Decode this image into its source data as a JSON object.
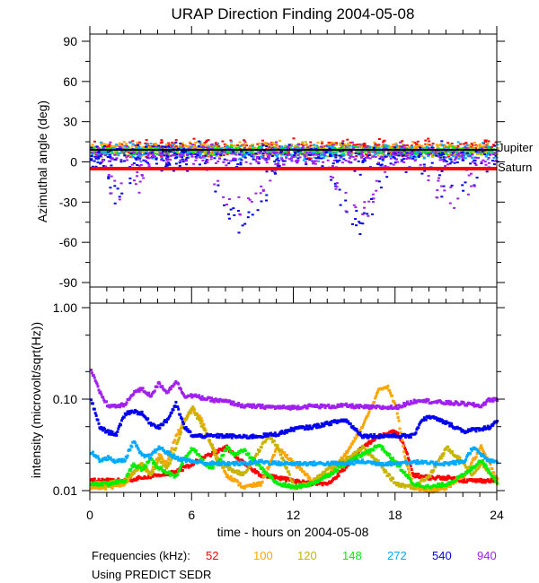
{
  "chart_data": [
    {
      "type": "scatter",
      "title": "URAP Direction Finding  2004-05-08",
      "xlabel": "time - hours on 2004-05-08",
      "ylabel": "Azimuthal angle (deg)",
      "xlim": [
        0,
        24
      ],
      "ylim": [
        -90,
        90
      ],
      "xticks": [
        "0",
        "6",
        "12",
        "18",
        "24"
      ],
      "yticks": [
        "90",
        "60",
        "30",
        "0",
        "-30",
        "-60",
        "-90"
      ],
      "reference_lines": [
        {
          "name": "Jupiter",
          "value": 9,
          "color": "#000000"
        },
        {
          "name": "Saturn",
          "value": -5,
          "color": "#ff0000"
        }
      ],
      "series": [
        {
          "name": "52",
          "color": "#ff0000",
          "center": 11,
          "spread": 6
        },
        {
          "name": "100",
          "color": "#ffa500",
          "center": 10,
          "spread": 5
        },
        {
          "name": "120",
          "color": "#c8b400",
          "center": 9,
          "spread": 5
        },
        {
          "name": "148",
          "color": "#00ee00",
          "center": 9,
          "spread": 3
        },
        {
          "name": "272",
          "color": "#00aaff",
          "center": 8,
          "spread": 6
        },
        {
          "name": "540",
          "color": "#0000ee",
          "center": 4,
          "spread": 10,
          "excursions": [
            [
              0.5,
              2.5,
              -25
            ],
            [
              7,
              11,
              -45
            ],
            [
              14,
              17.5,
              -45
            ],
            [
              19.5,
              23,
              -20
            ]
          ]
        },
        {
          "name": "940",
          "color": "#a020f0",
          "center": 6,
          "spread": 8,
          "excursions": [
            [
              0.5,
              3.5,
              -20
            ],
            [
              7,
              11,
              -35
            ],
            [
              14,
              17.5,
              -35
            ],
            [
              19.5,
              23,
              -25
            ]
          ]
        }
      ]
    },
    {
      "type": "scatter",
      "xlabel": "time - hours on 2004-05-08",
      "ylabel": "intensity (microvolt/sqrt(Hz))",
      "xlim": [
        0,
        24
      ],
      "ylim": [
        0.01,
        1.0
      ],
      "yscale": "log",
      "xticks": [
        "0",
        "6",
        "12",
        "18",
        "24"
      ],
      "yticks": [
        "1.00",
        "0.10",
        "0.01"
      ],
      "series": [
        {
          "name": "940",
          "color": "#a020f0",
          "x": [
            0,
            0.5,
            1,
            1.5,
            2,
            2.5,
            3,
            3.5,
            4,
            4.5,
            5,
            5.5,
            6,
            7,
            8,
            9,
            10,
            10.5,
            11,
            12,
            13,
            14,
            15,
            16,
            17,
            18,
            19,
            19.5,
            20,
            21,
            22,
            23,
            23.5,
            24
          ],
          "y": [
            0.21,
            0.12,
            0.085,
            0.085,
            0.087,
            0.12,
            0.13,
            0.11,
            0.15,
            0.12,
            0.16,
            0.11,
            0.11,
            0.1,
            0.095,
            0.085,
            0.084,
            0.083,
            0.082,
            0.082,
            0.085,
            0.084,
            0.086,
            0.083,
            0.082,
            0.082,
            0.095,
            0.1,
            0.095,
            0.092,
            0.09,
            0.085,
            0.1,
            0.1
          ]
        },
        {
          "name": "540",
          "color": "#0000ee",
          "x": [
            0,
            0.5,
            1,
            1.5,
            2,
            2.5,
            3,
            3.5,
            4,
            4.5,
            5,
            5.5,
            6,
            7,
            8,
            9,
            10,
            11,
            12,
            13,
            14,
            15,
            16,
            17,
            18,
            19,
            19.5,
            20,
            21,
            22,
            23,
            23.5,
            24
          ],
          "y": [
            0.1,
            0.05,
            0.044,
            0.042,
            0.07,
            0.075,
            0.07,
            0.055,
            0.05,
            0.06,
            0.09,
            0.05,
            0.04,
            0.04,
            0.04,
            0.039,
            0.04,
            0.042,
            0.048,
            0.05,
            0.055,
            0.06,
            0.04,
            0.04,
            0.04,
            0.04,
            0.06,
            0.065,
            0.055,
            0.045,
            0.048,
            0.05,
            0.06
          ]
        },
        {
          "name": "272",
          "color": "#00aaff",
          "x": [
            0,
            0.5,
            1,
            1.5,
            2,
            2.5,
            3,
            3.5,
            4,
            5,
            6,
            7,
            8,
            9,
            10,
            11,
            12,
            13,
            14,
            15,
            16,
            17,
            18,
            19,
            20,
            21,
            22,
            22.5,
            23,
            23.5,
            24
          ],
          "y": [
            0.027,
            0.022,
            0.023,
            0.021,
            0.022,
            0.035,
            0.024,
            0.024,
            0.03,
            0.023,
            0.021,
            0.02,
            0.02,
            0.02,
            0.021,
            0.02,
            0.02,
            0.02,
            0.02,
            0.02,
            0.021,
            0.02,
            0.02,
            0.021,
            0.02,
            0.02,
            0.021,
            0.03,
            0.025,
            0.021,
            0.021
          ]
        },
        {
          "name": "148",
          "color": "#00ee00",
          "x": [
            0,
            1,
            2,
            2.5,
            3,
            3.5,
            4,
            4.5,
            5,
            5.5,
            6,
            6.5,
            7,
            7.5,
            8,
            8.5,
            9,
            10,
            11,
            12,
            13,
            14,
            15,
            16,
            17,
            18,
            19,
            20,
            21,
            22,
            22.5,
            23,
            24
          ],
          "y": [
            0.012,
            0.012,
            0.013,
            0.02,
            0.017,
            0.022,
            0.018,
            0.016,
            0.014,
            0.022,
            0.03,
            0.022,
            0.018,
            0.02,
            0.03,
            0.025,
            0.028,
            0.018,
            0.012,
            0.011,
            0.012,
            0.015,
            0.02,
            0.025,
            0.032,
            0.02,
            0.012,
            0.011,
            0.012,
            0.015,
            0.018,
            0.022,
            0.012
          ]
        },
        {
          "name": "120",
          "color": "#c8b400",
          "x": [
            0,
            1,
            2,
            3,
            3.5,
            4,
            4.5,
            5,
            5.5,
            6,
            7,
            7.5,
            8,
            9,
            10,
            10.5,
            11,
            12,
            13,
            14,
            15,
            16,
            17,
            17.5,
            18,
            19,
            20,
            21,
            22,
            22.5,
            23,
            24
          ],
          "y": [
            0.012,
            0.012,
            0.013,
            0.02,
            0.015,
            0.022,
            0.018,
            0.03,
            0.06,
            0.08,
            0.035,
            0.02,
            0.018,
            0.015,
            0.03,
            0.04,
            0.03,
            0.011,
            0.012,
            0.018,
            0.022,
            0.03,
            0.02,
            0.015,
            0.012,
            0.011,
            0.015,
            0.03,
            0.02,
            0.015,
            0.02,
            0.012
          ]
        },
        {
          "name": "100",
          "color": "#ffa500",
          "x": [
            0,
            1,
            2,
            3,
            3.5,
            4,
            4.5,
            5,
            6,
            6.5,
            7,
            8,
            9,
            10,
            11,
            12,
            13,
            14,
            15,
            16,
            17,
            17.5,
            18,
            18.5,
            19,
            20,
            21,
            22,
            23,
            24
          ],
          "y": [
            0.011,
            0.011,
            0.012,
            0.02,
            0.015,
            0.025,
            0.02,
            0.04,
            0.08,
            0.06,
            0.035,
            0.015,
            0.011,
            0.012,
            0.03,
            0.02,
            0.013,
            0.015,
            0.025,
            0.05,
            0.13,
            0.14,
            0.08,
            0.025,
            0.011,
            0.01,
            0.011,
            0.015,
            0.03,
            0.013
          ]
        },
        {
          "name": "52",
          "color": "#ff0000",
          "x": [
            0,
            1,
            2,
            3,
            4,
            5,
            6,
            7,
            8,
            9,
            10,
            11,
            12,
            13,
            14,
            15,
            16,
            17,
            18,
            18.5,
            19,
            20,
            21,
            22,
            23,
            24
          ],
          "y": [
            0.013,
            0.013,
            0.013,
            0.014,
            0.015,
            0.016,
            0.02,
            0.025,
            0.03,
            0.02,
            0.015,
            0.014,
            0.013,
            0.012,
            0.012,
            0.018,
            0.03,
            0.04,
            0.045,
            0.03,
            0.015,
            0.014,
            0.014,
            0.013,
            0.013,
            0.013
          ]
        }
      ]
    }
  ],
  "legend": {
    "label": "Frequencies (kHz):",
    "items": [
      {
        "label": "52",
        "color": "#ff0000"
      },
      {
        "label": "100",
        "color": "#ffa500"
      },
      {
        "label": "120",
        "color": "#c8b400"
      },
      {
        "label": "148",
        "color": "#00ee00"
      },
      {
        "label": "272",
        "color": "#00aaff"
      },
      {
        "label": "540",
        "color": "#0000ee"
      },
      {
        "label": "940",
        "color": "#a020f0"
      }
    ]
  },
  "footnote": "Using PREDICT SEDR"
}
